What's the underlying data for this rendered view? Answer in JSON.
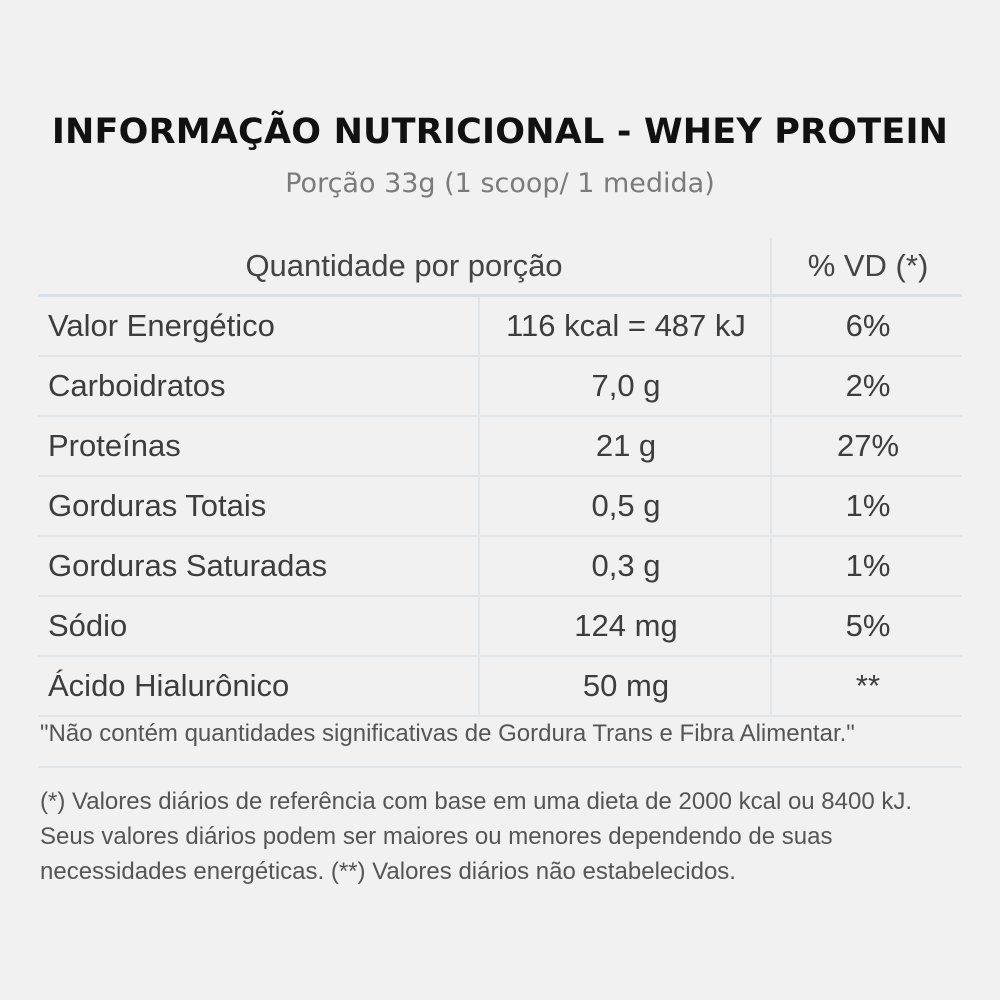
{
  "title": "INFORMAÇÃO NUTRICIONAL - WHEY PROTEIN",
  "subtitle": "Porção 33g (1 scoop/ 1 medida)",
  "table": {
    "headers": {
      "quantity": "Quantidade por porção",
      "vd": "% VD (*)"
    },
    "rows": [
      {
        "name": "Valor Energético",
        "amount": "116 kcal = 487 kJ",
        "vd": "6%"
      },
      {
        "name": "Carboidratos",
        "amount": "7,0 g",
        "vd": "2%"
      },
      {
        "name": "Proteínas",
        "amount": "21 g",
        "vd": "27%"
      },
      {
        "name": "Gorduras Totais",
        "amount": "0,5 g",
        "vd": "1%"
      },
      {
        "name": "Gorduras Saturadas",
        "amount": "0,3 g",
        "vd": "1%"
      },
      {
        "name": "Sódio",
        "amount": "124 mg",
        "vd": "5%"
      },
      {
        "name": "Ácido Hialurônico",
        "amount": "50 mg",
        "vd": "**"
      }
    ]
  },
  "note": "\"Não contém quantidades significativas de Gordura Trans e Fibra Alimentar.\"",
  "footnote": "(*) Valores diários de referência com base em uma dieta de 2000 kcal ou 8400 kJ. Seus valores diários podem ser maiores ou menores dependendo de suas necessidades energéticas. (**) Valores diários não estabelecidos."
}
